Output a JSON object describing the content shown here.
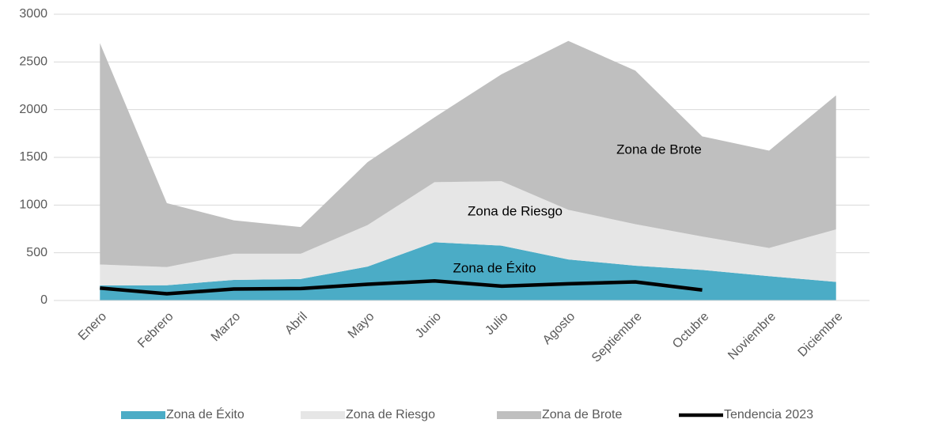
{
  "chart_data": {
    "type": "stacked_area_line",
    "categories": [
      "Enero",
      "Febrero",
      "Marzo",
      "Abril",
      "Mayo",
      "Junio",
      "Julio",
      "Agosto",
      "Septiembre",
      "Octubre",
      "Noviembre",
      "Diciembre"
    ],
    "series": [
      {
        "name": "Zona de Éxito",
        "color": "#4bacc6",
        "kind": "area",
        "values": [
          157,
          160,
          215,
          225,
          355,
          610,
          575,
          430,
          365,
          320,
          255,
          195
        ]
      },
      {
        "name": "Zona de Riesgo",
        "color": "#e6e6e6",
        "kind": "area",
        "values": [
          220,
          190,
          275,
          265,
          435,
          630,
          675,
          520,
          435,
          350,
          295,
          550
        ]
      },
      {
        "name": "Zona de Brote",
        "color": "#bfbfbf",
        "kind": "area",
        "values": [
          2320,
          670,
          350,
          280,
          660,
          680,
          1120,
          1770,
          1610,
          1050,
          1020,
          1405
        ]
      },
      {
        "name": "Tendencia 2023",
        "color": "#000000",
        "kind": "line",
        "values": [
          130,
          70,
          120,
          125,
          170,
          205,
          150,
          175,
          195,
          110,
          null,
          null
        ]
      }
    ],
    "annotations": [
      "Zona de Brote",
      "Zona de Riesgo",
      "Zona de Éxito"
    ],
    "ylim": [
      0,
      3000
    ],
    "yticks": [
      0,
      500,
      1000,
      1500,
      2000,
      2500,
      3000
    ],
    "grid": true,
    "legend": "bottom"
  }
}
